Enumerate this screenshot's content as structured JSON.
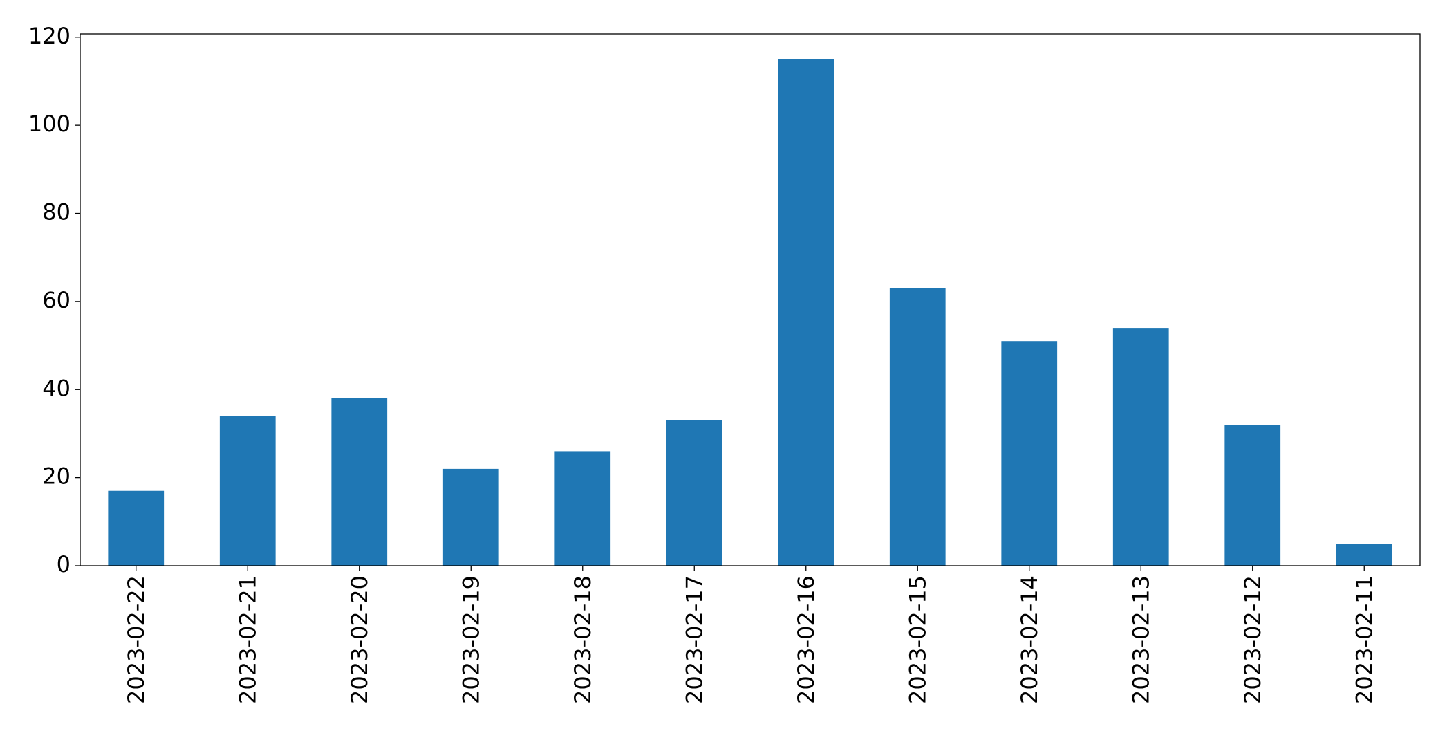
{
  "chart_data": {
    "type": "bar",
    "categories": [
      "2023-02-22",
      "2023-02-21",
      "2023-02-20",
      "2023-02-19",
      "2023-02-18",
      "2023-02-17",
      "2023-02-16",
      "2023-02-15",
      "2023-02-14",
      "2023-02-13",
      "2023-02-12",
      "2023-02-11"
    ],
    "values": [
      17,
      34,
      38,
      22,
      26,
      33,
      115,
      63,
      51,
      54,
      32,
      5
    ],
    "color": "#1f77b4",
    "ylim": [
      0,
      120.75
    ],
    "yticks": [
      0,
      20,
      40,
      60,
      80,
      100,
      120
    ],
    "grid": false
  }
}
